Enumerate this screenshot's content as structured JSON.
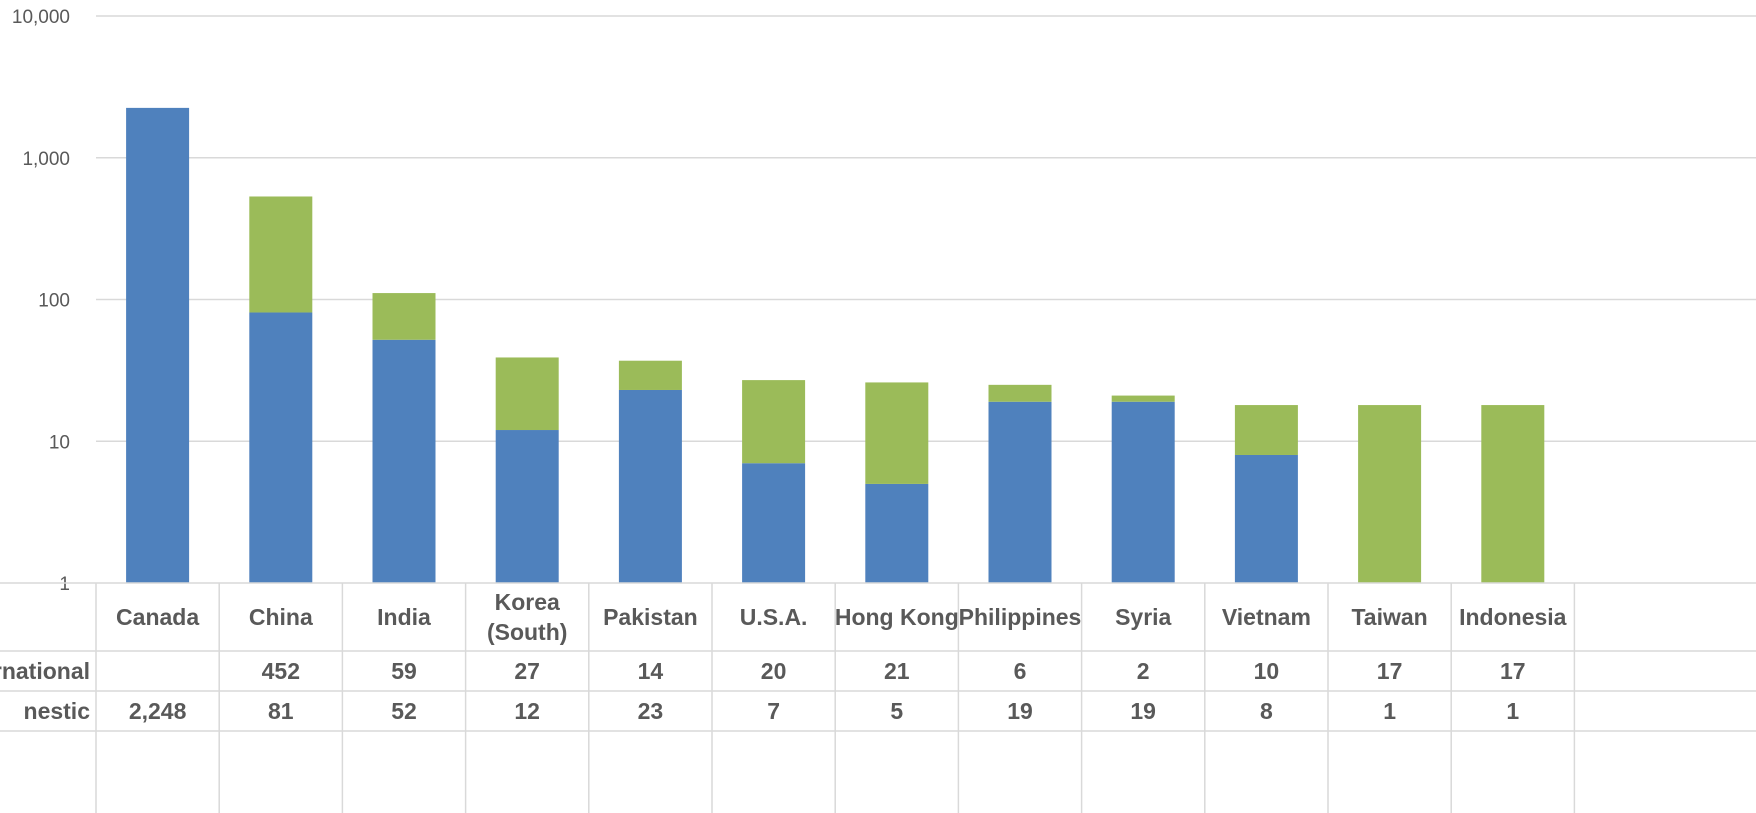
{
  "chart_data": {
    "type": "bar",
    "stacked": true,
    "y_scale": "log",
    "ylim": [
      1,
      10000
    ],
    "y_ticks": [
      "1",
      "10",
      "100",
      "1,000",
      "10,000"
    ],
    "y_tick_values": [
      1,
      10,
      100,
      1000,
      10000
    ],
    "grid": true,
    "categories": [
      "Canada",
      "China",
      "India",
      "Korea (South)",
      "Pakistan",
      "U.S.A.",
      "Hong Kong",
      "Philippines",
      "Syria",
      "Vietnam",
      "Taiwan",
      "Indonesia"
    ],
    "category_lines": [
      [
        "Canada"
      ],
      [
        "China"
      ],
      [
        "India"
      ],
      [
        "Korea",
        "(South)"
      ],
      [
        "Pakistan"
      ],
      [
        "U.S.A."
      ],
      [
        "Hong Kong"
      ],
      [
        "Philippines"
      ],
      [
        "Syria"
      ],
      [
        "Vietnam"
      ],
      [
        "Taiwan"
      ],
      [
        "Indonesia"
      ]
    ],
    "series": [
      {
        "name": "Domestic",
        "row_label": "nestic",
        "color": "#4f81bd",
        "values": [
          2248,
          81,
          52,
          12,
          23,
          7,
          5,
          19,
          19,
          8,
          1,
          1
        ],
        "display": [
          "2,248",
          "81",
          "52",
          "12",
          "23",
          "7",
          "5",
          "19",
          "19",
          "8",
          "1",
          "1"
        ]
      },
      {
        "name": "International",
        "row_label": "rnational",
        "color": "#9bbb59",
        "values": [
          null,
          452,
          59,
          27,
          14,
          20,
          21,
          6,
          2,
          10,
          17,
          17
        ],
        "display": [
          "",
          "452",
          "59",
          "27",
          "14",
          "20",
          "21",
          "6",
          "2",
          "10",
          "17",
          "17"
        ]
      }
    ],
    "table_row_order": [
      "International",
      "Domestic"
    ]
  }
}
